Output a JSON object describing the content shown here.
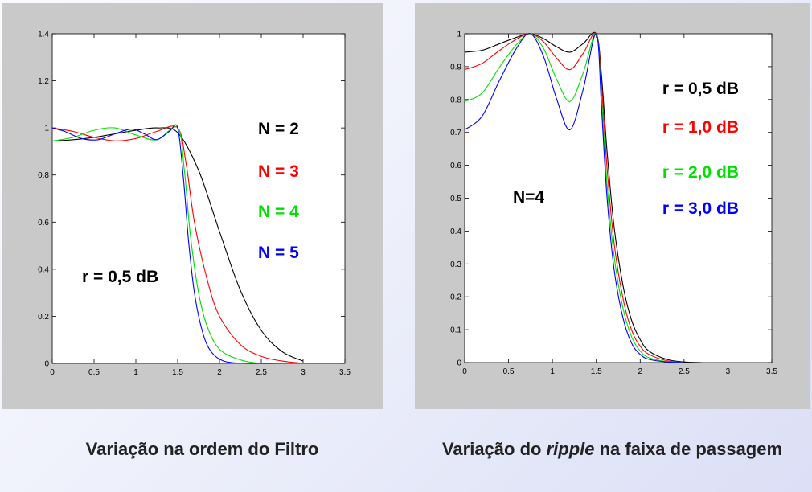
{
  "captions": {
    "left": "Variação na ordem do Filtro",
    "right_before": "Variação do ",
    "right_italic": "ripple",
    "right_after": " na faixa de passagem"
  },
  "colors": {
    "black": "#000000",
    "red": "#ff0000",
    "green": "#00e000",
    "blue": "#0000ff"
  },
  "chart_data": [
    {
      "type": "line",
      "xlim": [
        0,
        3.5
      ],
      "ylim": [
        0,
        1.4
      ],
      "xticks": [
        "0",
        "0.5",
        "1",
        "1.5",
        "2",
        "2.5",
        "3",
        "3.5"
      ],
      "yticks": [
        "0",
        "0.2",
        "0.4",
        "0.6",
        "0.8",
        "1",
        "1.2",
        "1.4"
      ],
      "annotations": {
        "ripple": "r = 0,5 dB",
        "n2": "N = 2",
        "n3": "N = 3",
        "n4": "N = 4",
        "n5": "N = 5"
      },
      "series": [
        {
          "name": "N = 2",
          "color": "#000000",
          "x": [
            0,
            0.25,
            0.5,
            0.75,
            1.0,
            1.25,
            1.5,
            1.75,
            2.0,
            2.25,
            2.5,
            2.75,
            3.0
          ],
          "y": [
            0.944,
            0.95,
            0.96,
            0.975,
            0.99,
            1.0,
            0.98,
            0.82,
            0.56,
            0.31,
            0.14,
            0.05,
            0.01
          ]
        },
        {
          "name": "N = 3",
          "color": "#ff0000",
          "x": [
            0,
            0.25,
            0.5,
            0.75,
            1.0,
            1.25,
            1.5,
            1.6,
            1.7,
            1.85,
            2.0,
            2.25,
            2.5,
            2.75,
            3.0
          ],
          "y": [
            1.0,
            0.985,
            0.96,
            0.945,
            0.955,
            0.985,
            1.0,
            0.85,
            0.6,
            0.36,
            0.2,
            0.08,
            0.03,
            0.01,
            0.0
          ]
        },
        {
          "name": "N = 4",
          "color": "#00e000",
          "x": [
            0,
            0.25,
            0.5,
            0.75,
            1.0,
            1.25,
            1.5,
            1.58,
            1.65,
            1.75,
            1.85,
            2.0,
            2.25,
            2.5,
            2.75,
            3.0
          ],
          "y": [
            0.944,
            0.96,
            0.99,
            1.0,
            0.97,
            0.95,
            1.0,
            0.82,
            0.55,
            0.3,
            0.16,
            0.06,
            0.015,
            0.0,
            0.0,
            0.0
          ]
        },
        {
          "name": "N = 5",
          "color": "#0000ff",
          "x": [
            0,
            0.15,
            0.35,
            0.55,
            0.75,
            0.95,
            1.1,
            1.25,
            1.4,
            1.5,
            1.57,
            1.63,
            1.7,
            1.8,
            1.9,
            2.05,
            2.3,
            2.6,
            3.0
          ],
          "y": [
            1.0,
            0.985,
            0.955,
            0.95,
            0.975,
            0.995,
            0.975,
            0.95,
            0.985,
            1.0,
            0.78,
            0.52,
            0.3,
            0.13,
            0.05,
            0.01,
            0.0,
            0.0,
            0.0
          ]
        }
      ]
    },
    {
      "type": "line",
      "xlim": [
        0,
        3.5
      ],
      "ylim": [
        0,
        1
      ],
      "xticks": [
        "0",
        "0.5",
        "1",
        "1.5",
        "2",
        "2.5",
        "3",
        "3.5"
      ],
      "yticks": [
        "0",
        "0.1",
        "0.2",
        "0.3",
        "0.4",
        "0.5",
        "0.6",
        "0.7",
        "0.8",
        "0.9",
        "1"
      ],
      "annotations": {
        "order": "N=4",
        "r05": "r = 0,5 dB",
        "r10": "r = 1,0 dB",
        "r20": "r = 2,0 dB",
        "r30": "r = 3,0 dB"
      },
      "series": [
        {
          "name": "r = 0,5 dB",
          "color": "#000000",
          "x": [
            0,
            0.2,
            0.4,
            0.6,
            0.75,
            0.9,
            1.05,
            1.2,
            1.35,
            1.5,
            1.56,
            1.62,
            1.7,
            1.8,
            1.9,
            2.0,
            2.1,
            2.3,
            2.5,
            2.7
          ],
          "y": [
            0.944,
            0.95,
            0.97,
            0.99,
            1.0,
            0.985,
            0.96,
            0.944,
            0.97,
            1.0,
            0.87,
            0.65,
            0.42,
            0.24,
            0.13,
            0.07,
            0.035,
            0.01,
            0.002,
            0.0
          ]
        },
        {
          "name": "r = 1,0 dB",
          "color": "#ff0000",
          "x": [
            0,
            0.2,
            0.4,
            0.6,
            0.75,
            0.9,
            1.05,
            1.2,
            1.35,
            1.5,
            1.56,
            1.62,
            1.7,
            1.8,
            1.9,
            2.0,
            2.1,
            2.3,
            2.5
          ],
          "y": [
            0.891,
            0.91,
            0.95,
            0.985,
            1.0,
            0.975,
            0.925,
            0.891,
            0.94,
            1.0,
            0.84,
            0.6,
            0.37,
            0.2,
            0.1,
            0.05,
            0.025,
            0.006,
            0.0
          ]
        },
        {
          "name": "r = 2,0 dB",
          "color": "#00e000",
          "x": [
            0,
            0.2,
            0.4,
            0.6,
            0.75,
            0.9,
            1.05,
            1.2,
            1.35,
            1.5,
            1.56,
            1.62,
            1.7,
            1.8,
            1.9,
            2.0,
            2.1,
            2.3,
            2.5
          ],
          "y": [
            0.794,
            0.82,
            0.9,
            0.97,
            1.0,
            0.955,
            0.86,
            0.794,
            0.88,
            1.0,
            0.8,
            0.55,
            0.33,
            0.17,
            0.08,
            0.035,
            0.015,
            0.003,
            0.0
          ]
        },
        {
          "name": "r = 3,0 dB",
          "color": "#0000ff",
          "x": [
            0,
            0.2,
            0.4,
            0.6,
            0.75,
            0.9,
            1.05,
            1.2,
            1.35,
            1.5,
            1.56,
            1.62,
            1.7,
            1.8,
            1.9,
            2.0,
            2.1,
            2.3,
            2.5
          ],
          "y": [
            0.708,
            0.75,
            0.86,
            0.96,
            1.0,
            0.93,
            0.8,
            0.708,
            0.83,
            1.0,
            0.77,
            0.51,
            0.29,
            0.14,
            0.06,
            0.025,
            0.01,
            0.002,
            0.0
          ]
        }
      ]
    }
  ]
}
